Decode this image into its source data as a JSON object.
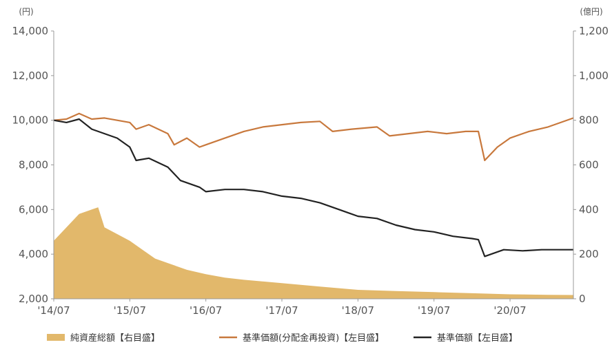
{
  "chart_data": {
    "type": "line",
    "title": "",
    "left_axis": {
      "unit": "(円)",
      "range": [
        2000,
        14000
      ],
      "ticks": [
        "14,000",
        "12,000",
        "10,000",
        "8,000",
        "6,000",
        "4,000",
        "2,000"
      ],
      "tick_values": [
        14000,
        12000,
        10000,
        8000,
        6000,
        4000,
        2000
      ]
    },
    "right_axis": {
      "unit": "(億円)",
      "range": [
        0,
        1200
      ],
      "ticks": [
        "1,200",
        "1,000",
        "800",
        "600",
        "400",
        "200",
        "0"
      ],
      "tick_values": [
        1200,
        1000,
        800,
        600,
        400,
        200,
        0
      ]
    },
    "x_axis": {
      "range": [
        "2014-07",
        "2021-05"
      ],
      "ticks": [
        "'14/07",
        "'15/07",
        "'16/07",
        "'17/07",
        "'18/07",
        "'19/07",
        "'20/07"
      ],
      "tick_dates": [
        "2014-07",
        "2015-07",
        "2016-07",
        "2017-07",
        "2018-07",
        "2019-07",
        "2020-07"
      ]
    },
    "grid": false,
    "legend_position": "bottom",
    "series": [
      {
        "name": "純資産総額【右目盛】",
        "type": "area",
        "axis": "right",
        "color": "#e2b86b",
        "x": [
          "2014-07",
          "2014-09",
          "2014-11",
          "2015-01",
          "2015-02",
          "2015-03",
          "2015-05",
          "2015-07",
          "2015-09",
          "2015-11",
          "2016-01",
          "2016-04",
          "2016-07",
          "2016-10",
          "2017-01",
          "2017-07",
          "2018-01",
          "2018-07",
          "2019-01",
          "2019-07",
          "2020-01",
          "2020-07",
          "2021-01",
          "2021-05"
        ],
        "values": [
          260,
          320,
          380,
          400,
          410,
          320,
          290,
          260,
          220,
          180,
          160,
          130,
          110,
          95,
          85,
          70,
          55,
          40,
          35,
          30,
          25,
          20,
          18,
          17
        ]
      },
      {
        "name": "基準価額(分配金再投資)【左目盛】",
        "type": "line",
        "axis": "left",
        "color": "#c8783c",
        "x": [
          "2014-07",
          "2014-09",
          "2014-11",
          "2015-01",
          "2015-03",
          "2015-05",
          "2015-07",
          "2015-08",
          "2015-10",
          "2016-01",
          "2016-02",
          "2016-04",
          "2016-06",
          "2016-07",
          "2016-10",
          "2017-01",
          "2017-04",
          "2017-07",
          "2017-10",
          "2018-01",
          "2018-03",
          "2018-06",
          "2018-10",
          "2018-12",
          "2019-03",
          "2019-06",
          "2019-09",
          "2019-12",
          "2020-02",
          "2020-03",
          "2020-05",
          "2020-07",
          "2020-10",
          "2021-01",
          "2021-05"
        ],
        "values": [
          10000,
          10050,
          10300,
          10050,
          10100,
          10000,
          9900,
          9600,
          9800,
          9400,
          8900,
          9200,
          8800,
          8900,
          9200,
          9500,
          9700,
          9800,
          9900,
          9950,
          9500,
          9600,
          9700,
          9300,
          9400,
          9500,
          9400,
          9500,
          9500,
          8200,
          8800,
          9200,
          9500,
          9700,
          10100
        ]
      },
      {
        "name": "基準価額【左目盛】",
        "type": "line",
        "axis": "left",
        "color": "#222222",
        "x": [
          "2014-07",
          "2014-09",
          "2014-11",
          "2015-01",
          "2015-03",
          "2015-05",
          "2015-07",
          "2015-08",
          "2015-10",
          "2016-01",
          "2016-03",
          "2016-06",
          "2016-07",
          "2016-10",
          "2017-01",
          "2017-04",
          "2017-07",
          "2017-10",
          "2018-01",
          "2018-04",
          "2018-07",
          "2018-10",
          "2019-01",
          "2019-04",
          "2019-07",
          "2019-10",
          "2020-01",
          "2020-02",
          "2020-03",
          "2020-06",
          "2020-09",
          "2020-12",
          "2021-03",
          "2021-05"
        ],
        "values": [
          10000,
          9900,
          10050,
          9600,
          9400,
          9200,
          8800,
          8200,
          8300,
          7900,
          7300,
          7000,
          6800,
          6900,
          6900,
          6800,
          6600,
          6500,
          6300,
          6000,
          5700,
          5600,
          5300,
          5100,
          5000,
          4800,
          4700,
          4650,
          3900,
          4200,
          4150,
          4200,
          4200,
          4200
        ]
      }
    ]
  }
}
